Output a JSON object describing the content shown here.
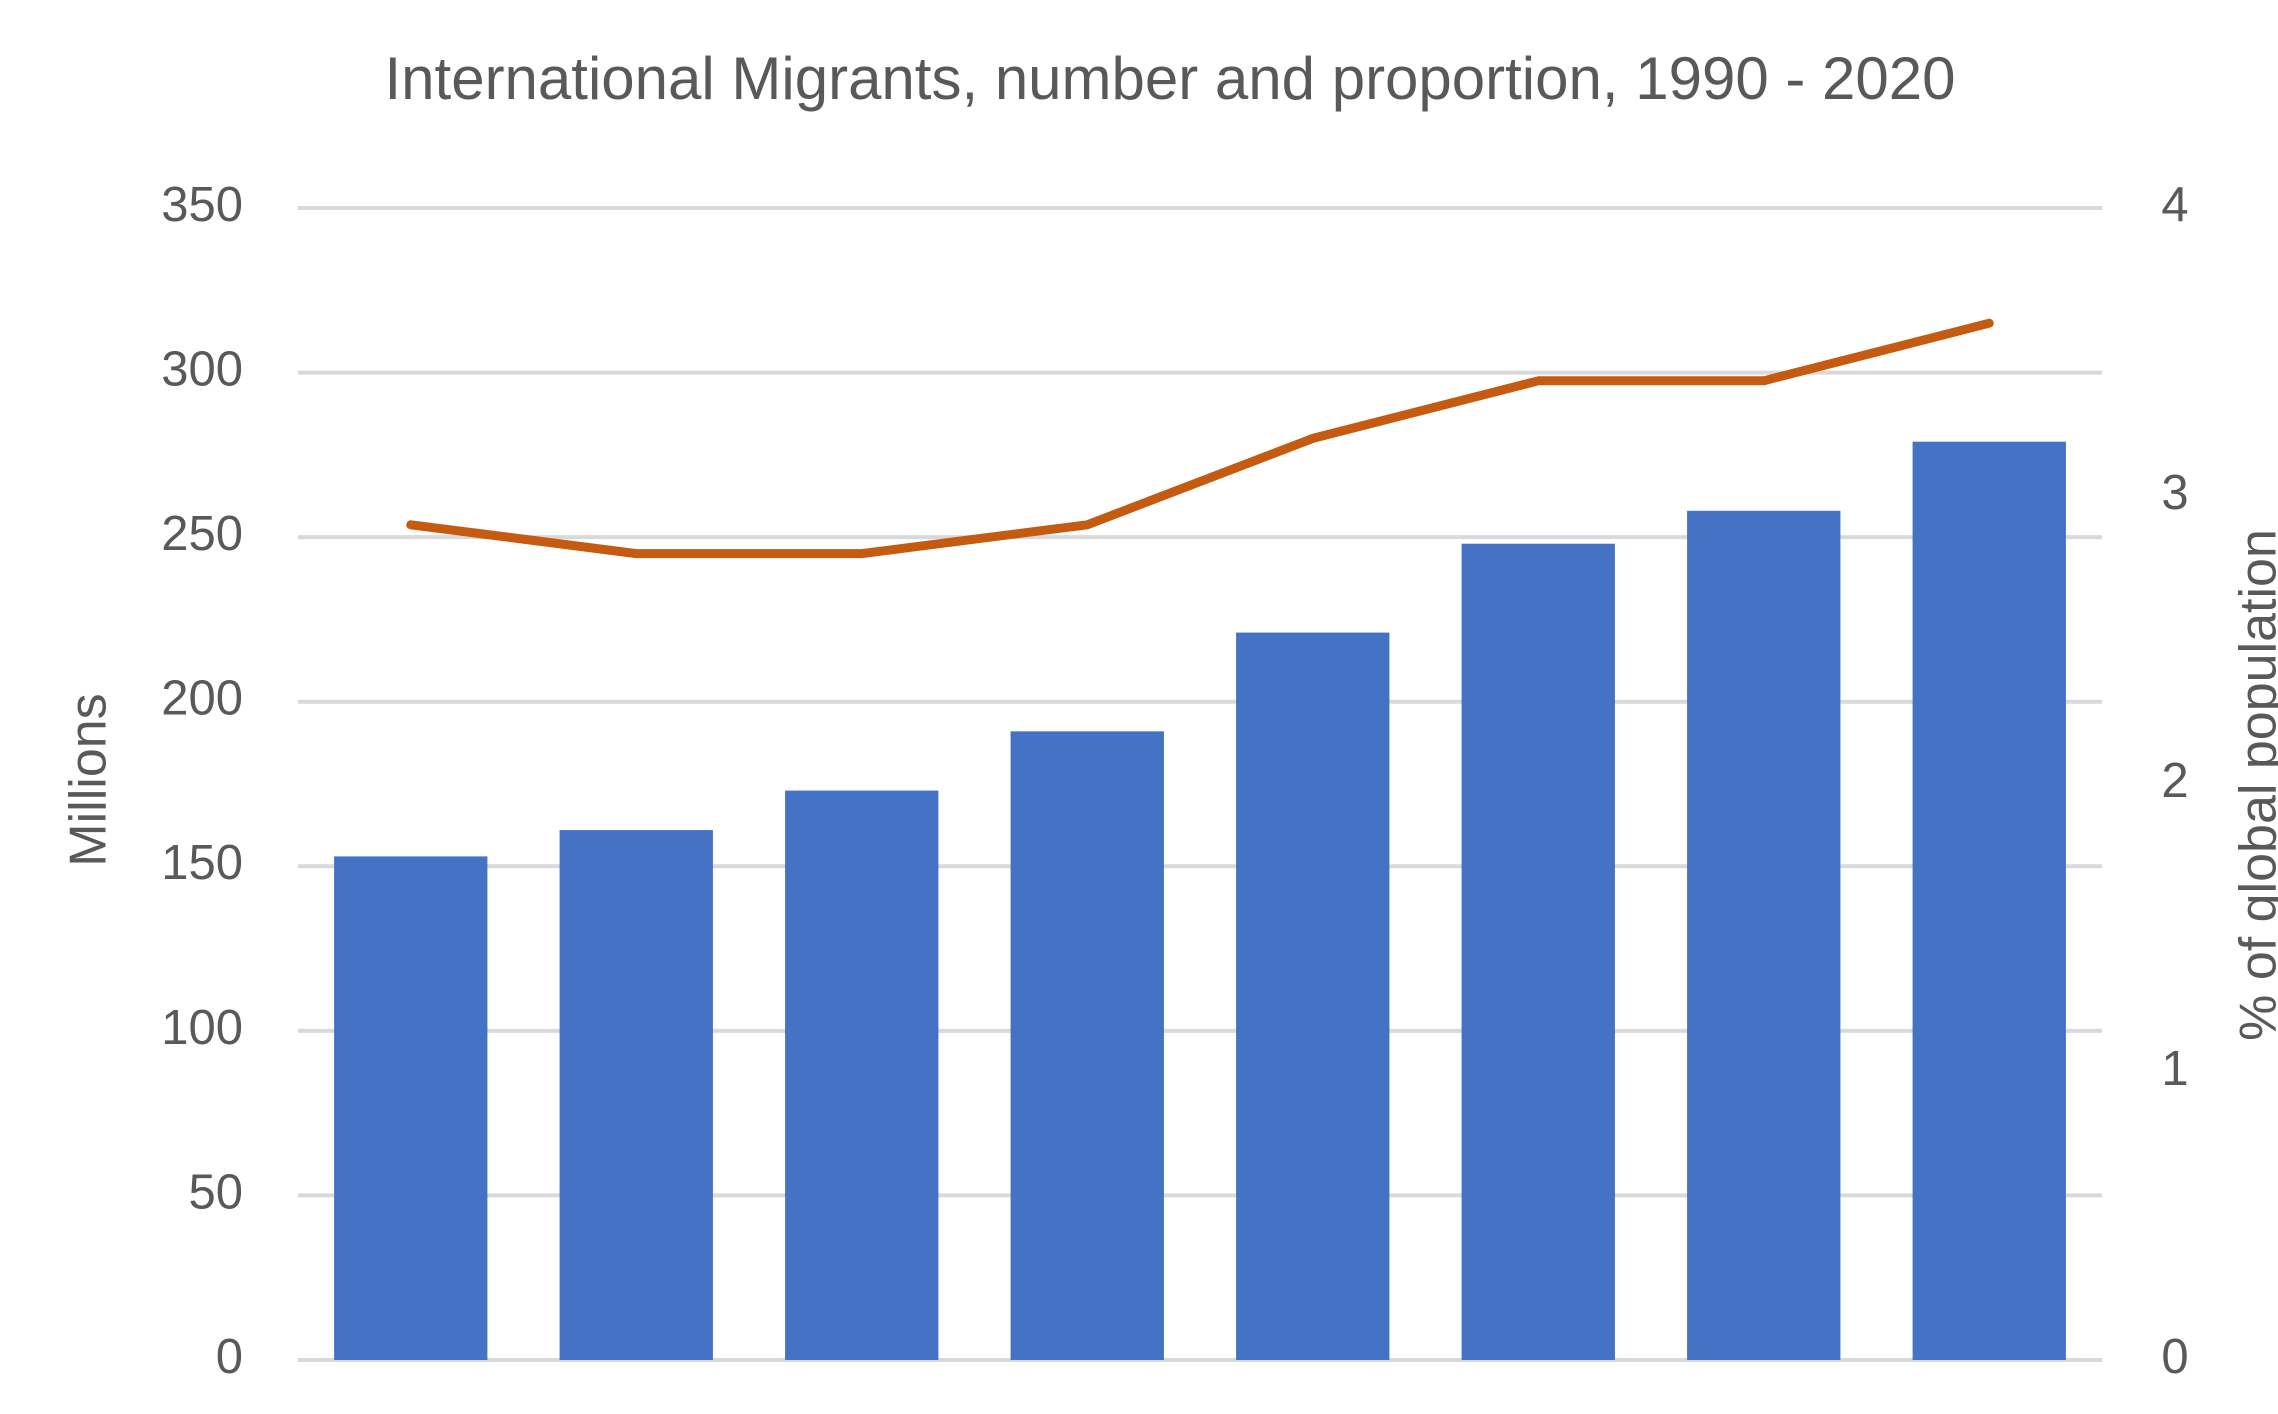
{
  "chart_data": {
    "type": "bar",
    "title": "International Migrants, number and proportion, 1990 - 2020",
    "categories": [
      null,
      null,
      null,
      null,
      null,
      null,
      null,
      null
    ],
    "series": [
      {
        "type": "bar",
        "color": "#4472c4",
        "values": [
          153,
          161,
          173,
          191,
          221,
          248,
          258,
          279
        ]
      },
      {
        "type": "line",
        "color": "#c55a11",
        "axis": "y2",
        "values": [
          2.9,
          2.8,
          2.8,
          2.9,
          3.2,
          3.4,
          3.4,
          3.6
        ]
      }
    ],
    "ylabel": "Millions",
    "y2label": "% of global population",
    "ylim": [
      0,
      350
    ],
    "yticks": [
      0,
      50,
      100,
      150,
      200,
      250,
      300,
      350
    ],
    "y2lim": [
      0,
      4
    ],
    "y2ticks": [
      0,
      1,
      2,
      3,
      4
    ],
    "grid": true
  }
}
